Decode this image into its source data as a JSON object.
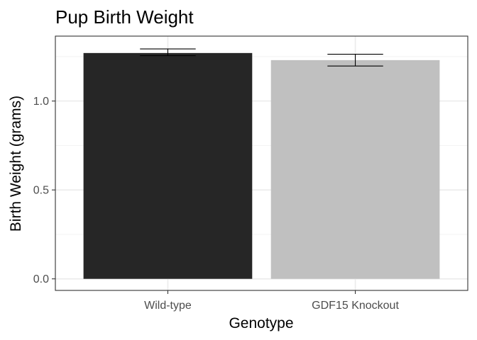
{
  "chart_data": {
    "type": "bar",
    "title": "Pup Birth Weight",
    "xlabel": "Genotype",
    "ylabel": "Birth Weight (grams)",
    "categories": [
      "Wild-type",
      "GDF15 Knockout"
    ],
    "values": [
      1.27,
      1.23
    ],
    "error_low": [
      1.255,
      1.197
    ],
    "error_high": [
      1.293,
      1.263
    ],
    "colors": [
      "#262626",
      "#c0c0c0"
    ],
    "ylim": [
      -0.065,
      1.365
    ],
    "yticks": [
      0.0,
      0.5,
      1.0
    ],
    "ytick_labels": [
      "0.0",
      "0.5",
      "1.0"
    ],
    "grid": true,
    "legend": "none",
    "theme": "bw"
  }
}
